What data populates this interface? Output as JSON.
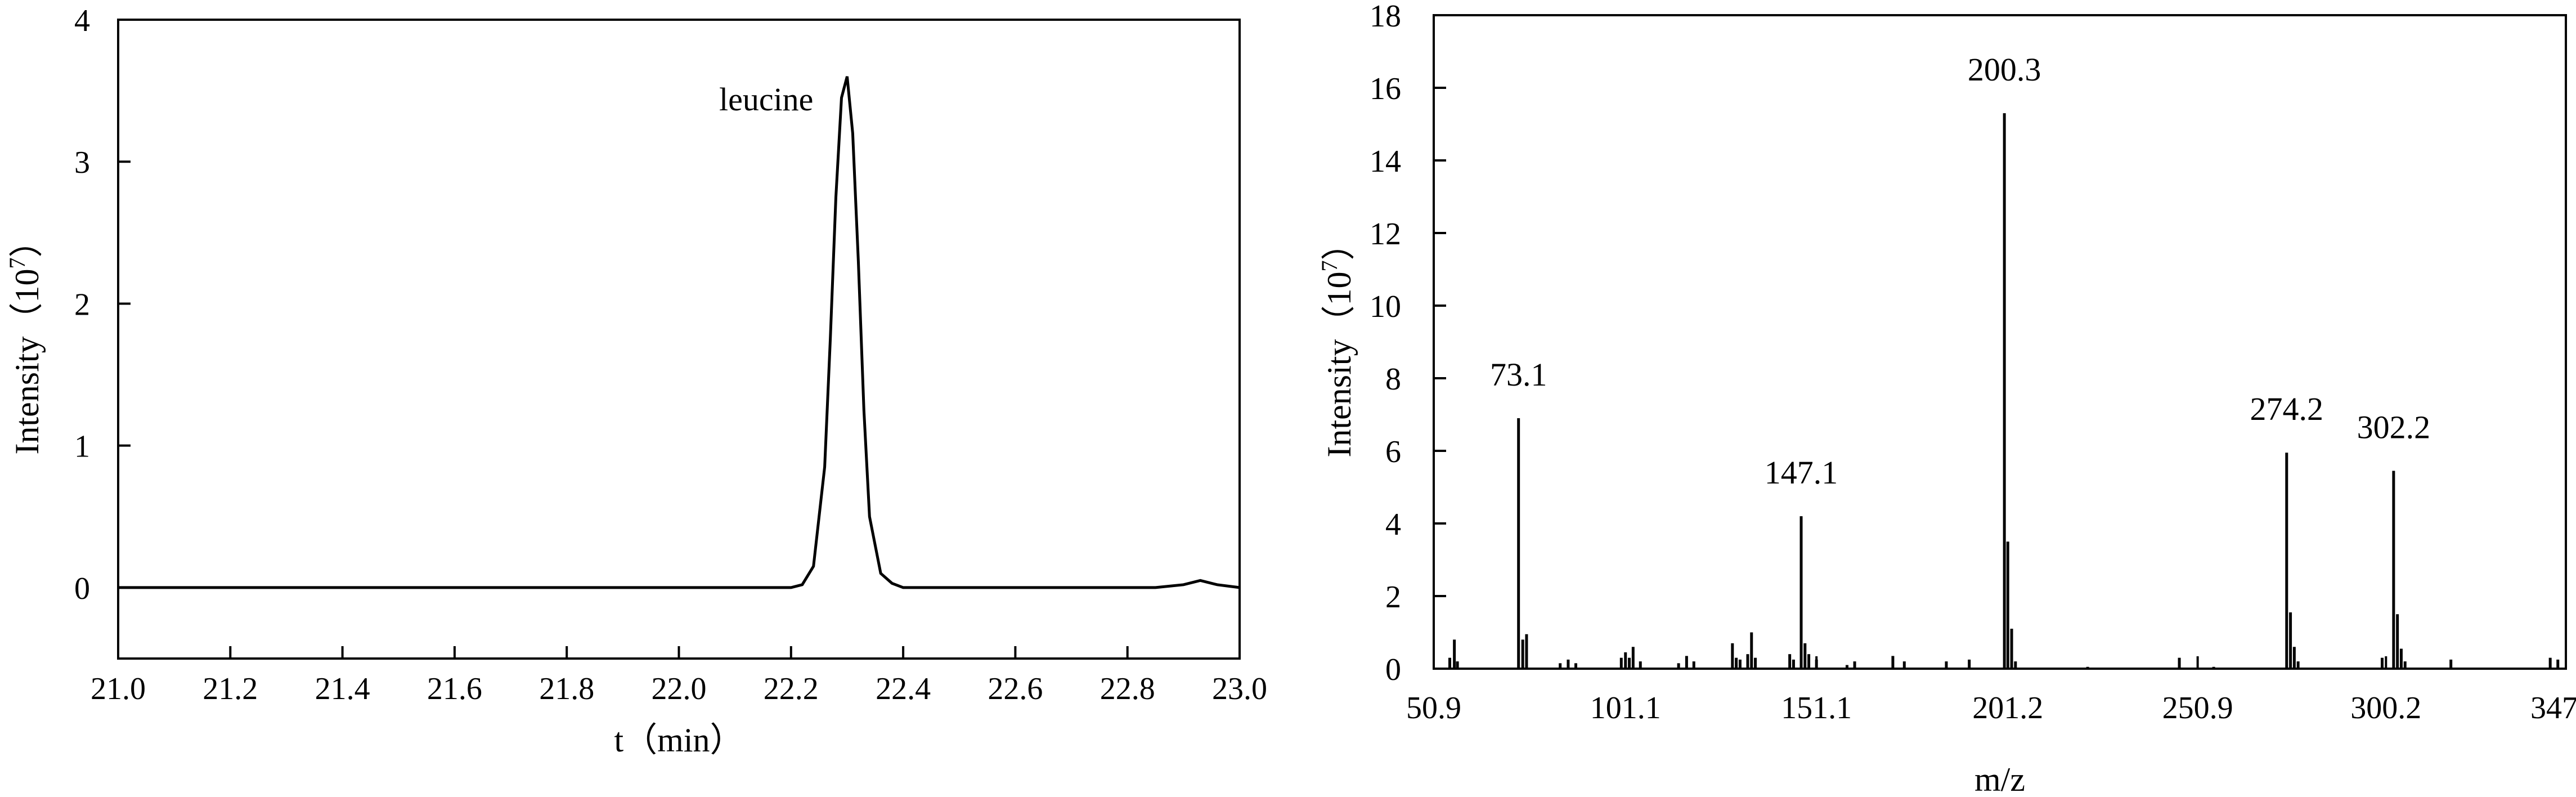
{
  "chart_data": [
    {
      "type": "line",
      "title": "",
      "xlabel": "t（min）",
      "ylabel": "Intensity（10",
      "ylabel_sup": "7",
      "ylabel_close": "）",
      "xlim": [
        21.0,
        23.0
      ],
      "ylim": [
        -0.5,
        4.0
      ],
      "x_ticks": [
        "21.0",
        "21.2",
        "21.4",
        "21.6",
        "21.8",
        "22.0",
        "22.2",
        "22.4",
        "22.6",
        "22.8",
        "23.0"
      ],
      "y_ticks": [
        "0",
        "1",
        "2",
        "3",
        "4"
      ],
      "peak_label": "leucine",
      "series": [
        {
          "x": [
            21.0,
            21.5,
            22.0,
            22.2,
            22.22,
            22.24,
            22.26,
            22.27,
            22.28,
            22.29,
            22.3,
            22.31,
            22.32,
            22.33,
            22.34,
            22.36,
            22.38,
            22.4,
            22.6,
            22.85,
            22.9,
            22.93,
            22.96,
            23.0
          ],
          "values": [
            0,
            0,
            0,
            0.0,
            0.02,
            0.15,
            0.85,
            1.75,
            2.75,
            3.45,
            3.6,
            3.2,
            2.3,
            1.25,
            0.5,
            0.1,
            0.03,
            0.0,
            0.0,
            0.0,
            0.02,
            0.05,
            0.02,
            0.0
          ]
        }
      ]
    },
    {
      "type": "bar",
      "title": "",
      "xlabel": "m/z",
      "ylabel": "Intensity（10",
      "ylabel_sup": "7",
      "ylabel_close": "）",
      "xlim": [
        50.9,
        347.3
      ],
      "ylim": [
        0,
        18
      ],
      "x_ticks": [
        "50.9",
        "101.1",
        "151.1",
        "201.2",
        "250.9",
        "300.2",
        "347.3"
      ],
      "x_tick_values": [
        50.9,
        101.1,
        151.1,
        201.2,
        250.9,
        300.2,
        347.3
      ],
      "y_ticks": [
        "0",
        "2",
        "4",
        "6",
        "8",
        "10",
        "12",
        "14",
        "16",
        "18"
      ],
      "peaks": [
        {
          "x": 55.1,
          "value": 0.3
        },
        {
          "x": 56.3,
          "value": 0.8
        },
        {
          "x": 57.1,
          "value": 0.2
        },
        {
          "x": 73.1,
          "value": 6.9,
          "label": "73.1"
        },
        {
          "x": 74.2,
          "value": 0.8
        },
        {
          "x": 75.2,
          "value": 0.95
        },
        {
          "x": 84.0,
          "value": 0.15
        },
        {
          "x": 86.1,
          "value": 0.25
        },
        {
          "x": 88.1,
          "value": 0.15
        },
        {
          "x": 100.0,
          "value": 0.3
        },
        {
          "x": 101.1,
          "value": 0.45
        },
        {
          "x": 102.1,
          "value": 0.3
        },
        {
          "x": 103.1,
          "value": 0.6
        },
        {
          "x": 105.0,
          "value": 0.2
        },
        {
          "x": 115.0,
          "value": 0.15
        },
        {
          "x": 117.1,
          "value": 0.35
        },
        {
          "x": 119.0,
          "value": 0.2
        },
        {
          "x": 129.1,
          "value": 0.7
        },
        {
          "x": 130.1,
          "value": 0.3
        },
        {
          "x": 131.1,
          "value": 0.25
        },
        {
          "x": 133.1,
          "value": 0.4
        },
        {
          "x": 134.1,
          "value": 1.0
        },
        {
          "x": 135.1,
          "value": 0.3
        },
        {
          "x": 144.1,
          "value": 0.4
        },
        {
          "x": 145.1,
          "value": 0.25
        },
        {
          "x": 147.1,
          "value": 4.2,
          "label": "147.1"
        },
        {
          "x": 148.1,
          "value": 0.7
        },
        {
          "x": 149.1,
          "value": 0.4
        },
        {
          "x": 151.1,
          "value": 0.25
        },
        {
          "x": 159.1,
          "value": 0.1
        },
        {
          "x": 161.1,
          "value": 0.2
        },
        {
          "x": 171.1,
          "value": 0.35
        },
        {
          "x": 174.1,
          "value": 0.2
        },
        {
          "x": 185.1,
          "value": 0.2
        },
        {
          "x": 191.1,
          "value": 0.25
        },
        {
          "x": 200.3,
          "value": 15.3,
          "label": "200.3"
        },
        {
          "x": 201.2,
          "value": 3.5
        },
        {
          "x": 202.2,
          "value": 1.1
        },
        {
          "x": 203.2,
          "value": 0.2
        },
        {
          "x": 222.1,
          "value": 0.05
        },
        {
          "x": 246.1,
          "value": 0.3
        },
        {
          "x": 255.1,
          "value": 0.05
        },
        {
          "x": 274.2,
          "value": 5.95,
          "label": "274.2"
        },
        {
          "x": 275.2,
          "value": 1.55
        },
        {
          "x": 276.2,
          "value": 0.6
        },
        {
          "x": 277.2,
          "value": 0.2
        },
        {
          "x": 299.2,
          "value": 0.3
        },
        {
          "x": 302.2,
          "value": 5.45,
          "label": "302.2"
        },
        {
          "x": 303.2,
          "value": 1.5
        },
        {
          "x": 304.2,
          "value": 0.55
        },
        {
          "x": 305.2,
          "value": 0.2
        },
        {
          "x": 317.2,
          "value": 0.25
        },
        {
          "x": 343.2,
          "value": 0.3
        },
        {
          "x": 345.2,
          "value": 0.25
        }
      ]
    }
  ]
}
